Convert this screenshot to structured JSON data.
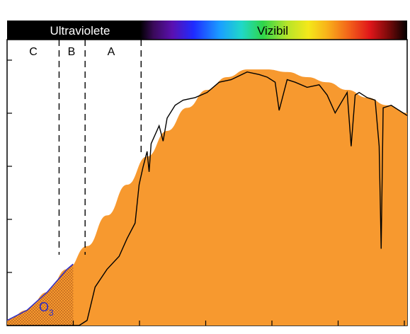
{
  "chart_data": {
    "type": "area",
    "title": "",
    "xlabel": "",
    "ylabel": "",
    "bands": {
      "uv_label": "Ultraviolete",
      "visible_label": "Vizibil"
    },
    "regions": [
      {
        "label": "C"
      },
      {
        "label": "B"
      },
      {
        "label": "A"
      }
    ],
    "ozone_label": "O",
    "ozone_subscript": "3",
    "x_ticks_count": 6,
    "y_ticks_count": 6,
    "series": [
      {
        "kind": "envelope",
        "x": [
          0.0,
          0.05,
          0.1,
          0.15,
          0.2,
          0.25,
          0.3,
          0.35,
          0.4,
          0.45,
          0.5,
          0.55,
          0.6,
          0.65,
          0.7,
          0.75,
          0.8,
          0.85,
          0.9,
          0.95,
          1.0
        ],
        "values": [
          0.02,
          0.06,
          0.13,
          0.22,
          0.31,
          0.43,
          0.55,
          0.66,
          0.76,
          0.85,
          0.92,
          0.97,
          1.0,
          1.0,
          0.99,
          0.97,
          0.95,
          0.92,
          0.89,
          0.86,
          0.83
        ]
      },
      {
        "kind": "measured",
        "x": [
          0.0,
          0.18,
          0.2,
          0.22,
          0.25,
          0.28,
          0.3,
          0.32,
          0.33,
          0.34,
          0.35,
          0.355,
          0.36,
          0.38,
          0.39,
          0.4,
          0.42,
          0.44,
          0.47,
          0.5,
          0.53,
          0.56,
          0.6,
          0.63,
          0.65,
          0.67,
          0.68,
          0.7,
          0.72,
          0.75,
          0.78,
          0.8,
          0.82,
          0.85,
          0.86,
          0.87,
          0.88,
          0.9,
          0.92,
          0.93,
          0.935,
          0.94,
          0.96,
          1.0
        ],
        "values": [
          0.0,
          0.0,
          0.02,
          0.15,
          0.22,
          0.27,
          0.34,
          0.4,
          0.55,
          0.62,
          0.68,
          0.6,
          0.71,
          0.78,
          0.72,
          0.81,
          0.86,
          0.88,
          0.89,
          0.91,
          0.95,
          0.96,
          0.99,
          0.98,
          0.97,
          0.95,
          0.84,
          0.96,
          0.95,
          0.93,
          0.94,
          0.9,
          0.83,
          0.91,
          0.7,
          0.9,
          0.91,
          0.89,
          0.88,
          0.7,
          0.3,
          0.85,
          0.86,
          0.82
        ]
      }
    ],
    "ylim": [
      0,
      1.05
    ],
    "xlim": [
      0,
      1
    ],
    "colors": {
      "fill": "#f7992f",
      "line": "#000000",
      "ozone_stroke": "#2a2ac8",
      "ozone_dots": "#8a3a10",
      "band_background": "#000000",
      "uv_text": "#ffffff",
      "visible_text": "#000000"
    }
  }
}
